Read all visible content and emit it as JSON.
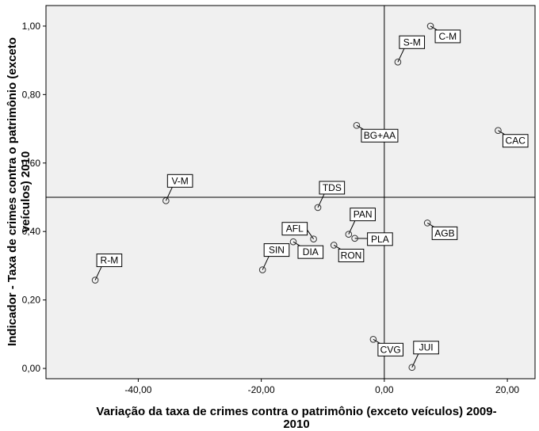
{
  "chart_data": {
    "type": "scatter",
    "title": "",
    "xlabel": "Variação da taxa de crimes contra o patrimônio (exceto veículos) 2009-2010",
    "ylabel": "Indicador - Taxa de crimes contra o patrimônio (exceto veículos) 2010",
    "xlim": [
      -55,
      24.5
    ],
    "ylim": [
      -0.03,
      1.06
    ],
    "x_ticks": [
      -40,
      -20,
      0,
      20
    ],
    "x_tick_labels": [
      "-40,00",
      "-20,00",
      "0,00",
      "20,00"
    ],
    "y_ticks": [
      0,
      0.2,
      0.4,
      0.6,
      0.8,
      1.0
    ],
    "y_tick_labels": [
      "0,00",
      "0,20",
      "0,40",
      "0,60",
      "0,80",
      "1,00"
    ],
    "reference_lines": {
      "x": 0,
      "y": 0.5
    },
    "grid": false,
    "background": "#f0f0f0",
    "points": [
      {
        "label": "C-M",
        "x": 7.5,
        "y": 1.0,
        "label_pos": "below-right"
      },
      {
        "label": "S-M",
        "x": 2.2,
        "y": 0.895,
        "label_pos": "above"
      },
      {
        "label": "BG+AA",
        "x": -4.5,
        "y": 0.71,
        "label_pos": "below-right"
      },
      {
        "label": "CAC",
        "x": 18.5,
        "y": 0.695,
        "label_pos": "below-right"
      },
      {
        "label": "V-M",
        "x": -35.5,
        "y": 0.49,
        "label_pos": "above"
      },
      {
        "label": "TDS",
        "x": -10.8,
        "y": 0.47,
        "label_pos": "above"
      },
      {
        "label": "AGB",
        "x": 7.0,
        "y": 0.425,
        "label_pos": "below-right"
      },
      {
        "label": "PAN",
        "x": -5.8,
        "y": 0.392,
        "label_pos": "above"
      },
      {
        "label": "AFL",
        "x": -11.5,
        "y": 0.378,
        "label_pos": "above-left"
      },
      {
        "label": "PLA",
        "x": -4.8,
        "y": 0.38,
        "label_pos": "right"
      },
      {
        "label": "DIA",
        "x": -14.8,
        "y": 0.37,
        "label_pos": "below-right"
      },
      {
        "label": "RON",
        "x": -8.2,
        "y": 0.36,
        "label_pos": "below-right"
      },
      {
        "label": "SIN",
        "x": -19.8,
        "y": 0.288,
        "label_pos": "above"
      },
      {
        "label": "R-M",
        "x": -47.0,
        "y": 0.258,
        "label_pos": "above"
      },
      {
        "label": "CVG",
        "x": -1.8,
        "y": 0.085,
        "label_pos": "below-right"
      },
      {
        "label": "JUI",
        "x": 4.5,
        "y": 0.003,
        "label_pos": "above"
      }
    ]
  },
  "colors": {
    "plot_background": "#f0f0f0",
    "marker_stroke": "#333333",
    "reference_line": "#000000",
    "label_box_fill": "#ffffff",
    "label_box_stroke": "#000000"
  }
}
